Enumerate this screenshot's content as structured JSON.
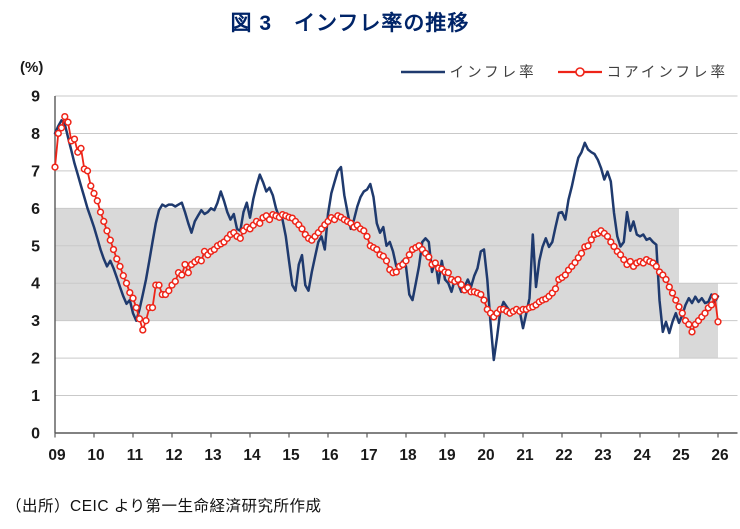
{
  "title": "図 3　インフレ率の推移",
  "axis_unit": "(%)",
  "source": "（出所）CEIC より第一生命経済研究所作成",
  "legend": {
    "headline": "インフレ率",
    "core": "コアインフレ率"
  },
  "colors": {
    "title": "#002468",
    "headline": "#1f3a6e",
    "core": "#ee2418",
    "band": "#d9d9d9",
    "gridline": "#c9c9c9",
    "axis": "#595959",
    "tick_label": "#1a1a1a"
  },
  "chart_data": {
    "type": "line",
    "frequency": "monthly",
    "start": "2009-01",
    "end": "2026-01",
    "ylim": [
      0,
      9
    ],
    "y_ticks": [
      0,
      1,
      2,
      3,
      4,
      5,
      6,
      7,
      8,
      9
    ],
    "x_tick_labels": [
      "09",
      "10",
      "11",
      "12",
      "13",
      "14",
      "15",
      "16",
      "17",
      "18",
      "19",
      "20",
      "21",
      "22",
      "23",
      "24",
      "25",
      "26"
    ],
    "grid": true,
    "legend_position": "top-right",
    "bands": [
      {
        "label": "inflation-target-band-3-6",
        "from_month_index": 0,
        "to_month_index": 192,
        "low": 3,
        "high": 6
      },
      {
        "label": "inflation-target-band-2-4",
        "from_month_index": 192,
        "to_month_index": 204,
        "low": 2,
        "high": 4
      }
    ],
    "series": [
      {
        "name": "インフレ率",
        "color": "#1f3a6e",
        "marker": "none",
        "values": [
          8.0,
          8.2,
          8.35,
          8.25,
          7.9,
          7.55,
          7.2,
          6.9,
          6.6,
          6.3,
          6.0,
          5.75,
          5.5,
          5.2,
          4.9,
          4.65,
          4.45,
          4.6,
          4.4,
          4.15,
          3.9,
          3.65,
          3.45,
          3.55,
          3.2,
          3.0,
          3.3,
          3.7,
          4.1,
          4.6,
          5.1,
          5.6,
          5.95,
          6.1,
          6.05,
          6.1,
          6.1,
          6.05,
          6.1,
          6.15,
          5.9,
          5.6,
          5.35,
          5.65,
          5.8,
          5.95,
          5.85,
          5.9,
          6.0,
          5.95,
          6.15,
          6.45,
          6.2,
          5.9,
          5.7,
          5.85,
          5.45,
          5.4,
          5.9,
          6.15,
          5.75,
          6.25,
          6.6,
          6.9,
          6.7,
          6.45,
          6.55,
          6.35,
          6.0,
          5.75,
          5.7,
          5.25,
          4.6,
          3.95,
          3.8,
          4.5,
          4.75,
          3.95,
          3.8,
          4.3,
          4.7,
          5.1,
          5.25,
          4.9,
          5.85,
          6.4,
          6.7,
          7.0,
          7.1,
          6.35,
          5.9,
          5.45,
          5.7,
          6.05,
          6.3,
          6.45,
          6.5,
          6.65,
          6.3,
          5.6,
          5.35,
          5.5,
          5.0,
          5.1,
          4.85,
          4.45,
          4.45,
          4.6,
          4.45,
          3.7,
          3.55,
          4.0,
          4.45,
          5.1,
          5.2,
          5.1,
          4.3,
          4.6,
          4.0,
          4.6,
          4.1,
          4.0,
          3.77,
          4.1,
          4.0,
          3.77,
          3.9,
          4.1,
          3.9,
          4.2,
          4.4,
          4.85,
          4.9,
          4.1,
          2.95,
          1.95,
          2.55,
          3.25,
          3.5,
          3.37,
          3.25,
          3.3,
          3.3,
          3.25,
          2.8,
          3.2,
          3.6,
          5.3,
          3.9,
          4.6,
          4.97,
          5.2,
          4.97,
          5.1,
          5.5,
          5.88,
          5.9,
          5.7,
          6.23,
          6.58,
          6.98,
          7.35,
          7.5,
          7.75,
          7.57,
          7.5,
          7.45,
          7.3,
          7.08,
          6.77,
          6.98,
          6.72,
          5.88,
          5.25,
          4.98,
          5.1,
          5.9,
          5.4,
          5.65,
          5.3,
          5.25,
          5.3,
          5.16,
          5.2,
          5.1,
          5.03,
          3.55,
          2.7,
          2.97,
          2.67,
          2.97,
          3.2,
          2.94,
          3.15,
          3.42,
          3.6,
          3.47,
          3.64,
          3.5,
          3.6,
          3.47,
          3.5,
          3.7,
          3.5,
          3.65
        ]
      },
      {
        "name": "コアインフレ率",
        "color": "#ee2418",
        "marker": "open-circle",
        "values": [
          7.1,
          8.0,
          8.15,
          8.45,
          8.3,
          7.8,
          7.85,
          7.5,
          7.6,
          7.05,
          7.0,
          6.6,
          6.4,
          6.2,
          5.9,
          5.65,
          5.4,
          5.15,
          4.9,
          4.65,
          4.45,
          4.2,
          4.0,
          3.75,
          3.6,
          3.35,
          3.05,
          2.75,
          3.0,
          3.35,
          3.35,
          3.95,
          3.95,
          3.7,
          3.7,
          3.8,
          3.95,
          4.05,
          4.28,
          4.22,
          4.5,
          4.28,
          4.5,
          4.57,
          4.63,
          4.6,
          4.85,
          4.76,
          4.85,
          4.9,
          5.0,
          5.05,
          5.1,
          5.2,
          5.3,
          5.35,
          5.25,
          5.2,
          5.4,
          5.5,
          5.45,
          5.55,
          5.65,
          5.6,
          5.75,
          5.8,
          5.7,
          5.83,
          5.8,
          5.76,
          5.83,
          5.8,
          5.76,
          5.74,
          5.65,
          5.56,
          5.45,
          5.3,
          5.2,
          5.15,
          5.25,
          5.35,
          5.45,
          5.56,
          5.65,
          5.75,
          5.7,
          5.8,
          5.76,
          5.7,
          5.65,
          5.6,
          5.5,
          5.55,
          5.45,
          5.4,
          5.25,
          5.0,
          4.95,
          4.9,
          4.76,
          4.72,
          4.6,
          4.36,
          4.28,
          4.3,
          4.45,
          4.5,
          4.6,
          4.76,
          4.9,
          4.95,
          5.0,
          4.9,
          4.8,
          4.7,
          4.5,
          4.54,
          4.4,
          4.38,
          4.3,
          4.28,
          4.1,
          4.05,
          4.1,
          3.96,
          3.82,
          3.88,
          3.77,
          3.77,
          3.74,
          3.7,
          3.55,
          3.3,
          3.2,
          3.1,
          3.2,
          3.3,
          3.3,
          3.25,
          3.2,
          3.25,
          3.3,
          3.25,
          3.3,
          3.3,
          3.35,
          3.37,
          3.42,
          3.5,
          3.55,
          3.58,
          3.65,
          3.74,
          3.85,
          4.1,
          4.15,
          4.22,
          4.35,
          4.45,
          4.55,
          4.68,
          4.8,
          4.97,
          5.0,
          5.16,
          5.3,
          5.33,
          5.4,
          5.33,
          5.25,
          5.1,
          4.98,
          4.85,
          4.76,
          4.63,
          4.5,
          4.58,
          4.45,
          4.54,
          4.58,
          4.54,
          4.63,
          4.58,
          4.54,
          4.45,
          4.3,
          4.22,
          4.1,
          3.9,
          3.74,
          3.55,
          3.37,
          3.2,
          3.0,
          2.9,
          2.7,
          2.9,
          3.0,
          3.1,
          3.2,
          3.34,
          3.42,
          3.64,
          2.97
        ]
      }
    ]
  }
}
